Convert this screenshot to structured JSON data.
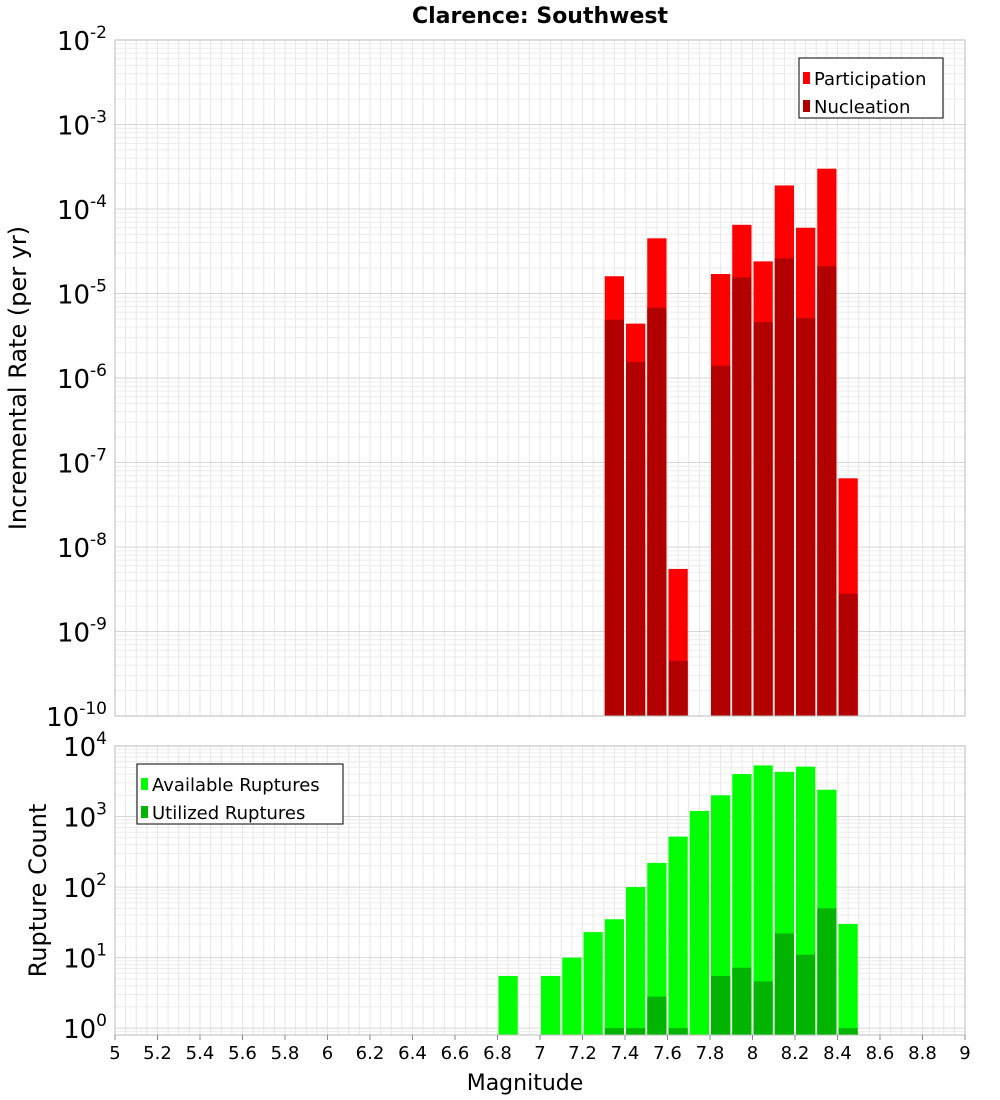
{
  "chart_data": [
    {
      "type": "bar",
      "title": "Clarence: Southwest",
      "xlabel": "",
      "ylabel": "Incremental Rate (per yr)",
      "yscale": "log",
      "ylim": [
        1e-10,
        0.01
      ],
      "xlim": [
        5,
        9
      ],
      "bin_width": 0.1,
      "grid": true,
      "legend_position": "top-right",
      "y_ticks": [
        {
          "base": "10",
          "exp": "-10"
        },
        {
          "base": "10",
          "exp": "-9"
        },
        {
          "base": "10",
          "exp": "-8"
        },
        {
          "base": "10",
          "exp": "-7"
        },
        {
          "base": "10",
          "exp": "-6"
        },
        {
          "base": "10",
          "exp": "-5"
        },
        {
          "base": "10",
          "exp": "-4"
        },
        {
          "base": "10",
          "exp": "-3"
        },
        {
          "base": "10",
          "exp": "-2"
        }
      ],
      "series": [
        {
          "name": "Participation",
          "color": "#ff0000",
          "x": [
            7.35,
            7.45,
            7.55,
            7.65,
            7.85,
            7.95,
            8.05,
            8.15,
            8.25,
            8.35,
            8.45
          ],
          "values": [
            1.6e-05,
            4.4e-06,
            4.5e-05,
            5.5e-09,
            1.7e-05,
            6.5e-05,
            2.4e-05,
            0.00019,
            6e-05,
            0.0003,
            6.5e-08
          ]
        },
        {
          "name": "Nucleation",
          "color": "#b20000",
          "x": [
            7.35,
            7.45,
            7.55,
            7.65,
            7.85,
            7.95,
            8.05,
            8.15,
            8.25,
            8.35,
            8.45
          ],
          "values": [
            4.9e-06,
            1.55e-06,
            6.8e-06,
            4.5e-10,
            1.4e-06,
            1.55e-05,
            4.6e-06,
            2.6e-05,
            5.1e-06,
            2.1e-05,
            2.8e-09
          ]
        }
      ]
    },
    {
      "type": "bar",
      "title": "",
      "xlabel": "Magnitude",
      "ylabel": "Rupture Count",
      "yscale": "log",
      "ylim": [
        0.8,
        10000
      ],
      "xlim": [
        5,
        9
      ],
      "bin_width": 0.1,
      "grid": true,
      "legend_position": "top-left",
      "x_ticks": [
        "5",
        "5.2",
        "5.4",
        "5.6",
        "5.8",
        "6",
        "6.2",
        "6.4",
        "6.6",
        "6.8",
        "7",
        "7.2",
        "7.4",
        "7.6",
        "7.8",
        "8",
        "8.2",
        "8.4",
        "8.6",
        "8.8",
        "9"
      ],
      "y_ticks": [
        {
          "base": "10",
          "exp": "0"
        },
        {
          "base": "10",
          "exp": "1"
        },
        {
          "base": "10",
          "exp": "2"
        },
        {
          "base": "10",
          "exp": "3"
        },
        {
          "base": "10",
          "exp": "4"
        }
      ],
      "series": [
        {
          "name": "Available Ruptures",
          "color": "#00ff00",
          "x": [
            6.85,
            7.05,
            7.15,
            7.25,
            7.35,
            7.45,
            7.55,
            7.65,
            7.75,
            7.85,
            7.95,
            8.05,
            8.15,
            8.25,
            8.35,
            8.45
          ],
          "values": [
            5.5,
            5.5,
            10,
            23,
            35,
            100,
            220,
            520,
            1200,
            2000,
            4000,
            5300,
            4300,
            5100,
            2400,
            30
          ]
        },
        {
          "name": "Utilized Ruptures",
          "color": "#00b400",
          "x": [
            7.35,
            7.45,
            7.55,
            7.65,
            7.85,
            7.95,
            8.05,
            8.15,
            8.25,
            8.35,
            8.45
          ],
          "values": [
            1,
            1,
            2.8,
            1,
            5.5,
            7.2,
            4.6,
            22,
            11,
            50,
            1
          ]
        }
      ]
    }
  ]
}
